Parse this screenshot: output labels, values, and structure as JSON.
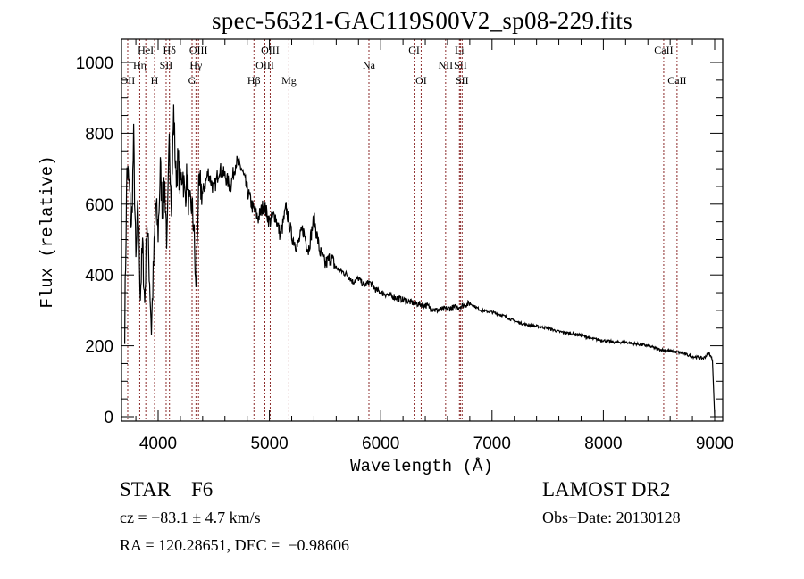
{
  "chart_data": {
    "type": "line",
    "title": "spec-56321-GAC119S00V2_sp08-229.fits",
    "xlabel": "Wavelength (Å)",
    "ylabel": "Flux (relative)",
    "xlim": [
      3700,
      9100
    ],
    "ylim": [
      -15,
      1050
    ],
    "xticks": [
      4000,
      5000,
      6000,
      7000,
      8000,
      9000
    ],
    "xtick_labels": [
      "4000",
      "5000",
      "6000",
      "7000",
      "8000",
      "9000"
    ],
    "yticks": [
      0,
      200,
      400,
      600,
      800,
      1000
    ],
    "ytick_labels": [
      "0",
      "200",
      "400",
      "600",
      "800",
      "1000"
    ],
    "grid": false,
    "series": [
      {
        "name": "flux",
        "color": "#000000",
        "x": [
          3700,
          3720,
          3740,
          3760,
          3780,
          3800,
          3820,
          3840,
          3860,
          3880,
          3900,
          3920,
          3940,
          3960,
          3980,
          4000,
          4020,
          4040,
          4060,
          4080,
          4100,
          4120,
          4140,
          4160,
          4180,
          4200,
          4220,
          4240,
          4260,
          4280,
          4300,
          4320,
          4340,
          4360,
          4380,
          4400,
          4450,
          4500,
          4550,
          4600,
          4650,
          4700,
          4750,
          4800,
          4850,
          4900,
          4950,
          5000,
          5050,
          5100,
          5150,
          5200,
          5250,
          5300,
          5350,
          5400,
          5450,
          5500,
          5550,
          5600,
          5650,
          5700,
          5750,
          5800,
          5850,
          5900,
          5950,
          6000,
          6100,
          6200,
          6300,
          6400,
          6500,
          6600,
          6700,
          6800,
          6900,
          7000,
          7100,
          7200,
          7300,
          7400,
          7500,
          7600,
          7700,
          7800,
          7900,
          8000,
          8100,
          8200,
          8300,
          8400,
          8500,
          8600,
          8700,
          8800,
          8900,
          8950,
          8980,
          9000
        ],
        "y": [
          260,
          700,
          650,
          520,
          780,
          430,
          600,
          350,
          480,
          320,
          550,
          420,
          250,
          430,
          600,
          520,
          700,
          580,
          650,
          480,
          770,
          620,
          860,
          680,
          720,
          650,
          700,
          620,
          680,
          580,
          600,
          540,
          340,
          620,
          650,
          630,
          690,
          640,
          700,
          680,
          650,
          720,
          700,
          640,
          590,
          560,
          600,
          550,
          570,
          510,
          590,
          510,
          480,
          530,
          470,
          560,
          470,
          430,
          450,
          420,
          410,
          400,
          380,
          390,
          370,
          380,
          360,
          350,
          340,
          330,
          320,
          315,
          300,
          305,
          310,
          320,
          300,
          295,
          285,
          270,
          260,
          255,
          250,
          240,
          235,
          230,
          220,
          215,
          210,
          210,
          205,
          200,
          190,
          185,
          180,
          170,
          165,
          180,
          160,
          0
        ]
      }
    ],
    "line_markers": {
      "style": "dotted",
      "color": "#8b2a2a",
      "lines": [
        {
          "label": "OII",
          "wavelength": 3727,
          "row": 3
        },
        {
          "label": "Hη",
          "wavelength": 3835,
          "row": 2
        },
        {
          "label": "HeI",
          "wavelength": 3889,
          "row": 1
        },
        {
          "label": "H",
          "wavelength": 3968,
          "row": 3
        },
        {
          "label": "SII",
          "wavelength": 4072,
          "row": 2
        },
        {
          "label": "Hδ",
          "wavelength": 4102,
          "row": 1
        },
        {
          "label": "G",
          "wavelength": 4305,
          "row": 3
        },
        {
          "label": "Hγ",
          "wavelength": 4340,
          "row": 2
        },
        {
          "label": "OIII",
          "wavelength": 4363,
          "row": 1
        },
        {
          "label": "Hβ",
          "wavelength": 4861,
          "row": 3
        },
        {
          "label": "OIII",
          "wavelength": 4959,
          "row": 2
        },
        {
          "label": "OIII",
          "wavelength": 5007,
          "row": 1
        },
        {
          "label": "Mg",
          "wavelength": 5175,
          "row": 3
        },
        {
          "label": "Na",
          "wavelength": 5894,
          "row": 2
        },
        {
          "label": "OI",
          "wavelength": 6300,
          "row": 1
        },
        {
          "label": "OI",
          "wavelength": 6363,
          "row": 3
        },
        {
          "label": "NII",
          "wavelength": 6583,
          "row": 2
        },
        {
          "label": "Li",
          "wavelength": 6707,
          "row": 1
        },
        {
          "label": "SII",
          "wavelength": 6716,
          "row": 2
        },
        {
          "label": "SII",
          "wavelength": 6731,
          "row": 3
        },
        {
          "label": "CaII",
          "wavelength": 8542,
          "row": 1
        },
        {
          "label": "CaII",
          "wavelength": 8662,
          "row": 3
        }
      ]
    }
  },
  "info": {
    "object_class": "STAR    F6",
    "redshift": "cz = −83.1 ± 4.7 km/s",
    "coords": "RA = 120.28651, DEC =  −0.98606",
    "survey": "LAMOST DR2",
    "obs_date": "Obs−Date: 20130128"
  }
}
